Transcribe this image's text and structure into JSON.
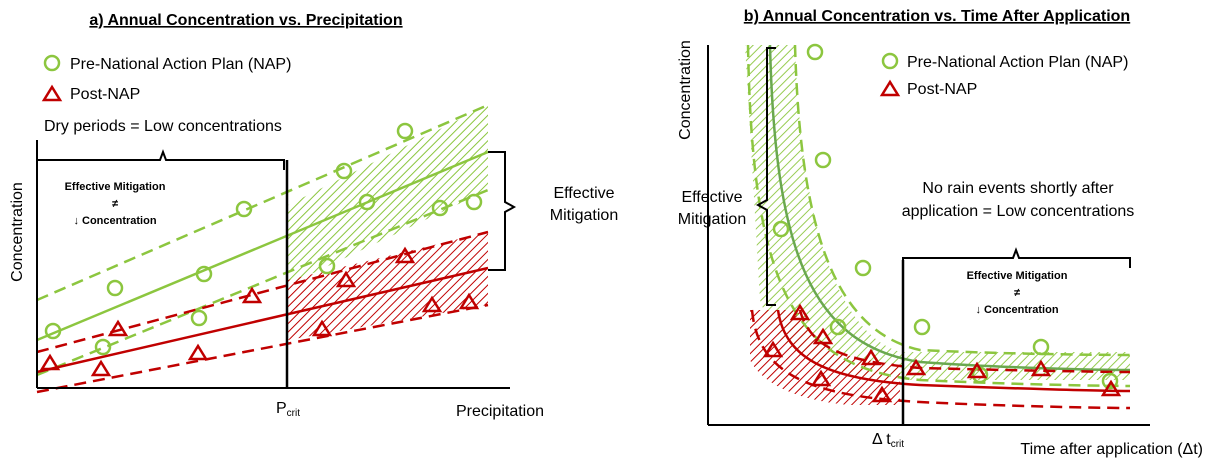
{
  "panel_a": {
    "title": "a) Annual Concentration vs. Precipitation",
    "legend_pre": "Pre-National Action Plan (NAP)",
    "legend_post": "Post-NAP",
    "dry_periods": "Dry periods = Low concentrations",
    "box_line1": "Effective Mitigation",
    "box_line2": "≠",
    "box_line3": "↓ Concentration",
    "right_line1": "Effective",
    "right_line2": "Mitigation",
    "ylabel": "Concentration",
    "xlabel": "Precipitation",
    "pcrit_main": "P",
    "pcrit_sub": "crit"
  },
  "panel_b": {
    "title": "b) Annual Concentration vs. Time After Application",
    "legend_pre": "Pre-National Action Plan (NAP)",
    "legend_post": "Post-NAP",
    "ylabel": "Concentration",
    "xlabel": "Time after application (Δt)",
    "left_line1": "Effective",
    "left_line2": "Mitigation",
    "norain_line1": "No rain events shortly after",
    "norain_line2": "application = Low concentrations",
    "box_line1": "Effective Mitigation",
    "box_line2": "≠",
    "box_line3": "↓ Concentration",
    "tcrit_main": "Δ t",
    "tcrit_sub": "crit"
  },
  "colors": {
    "green": "#8cc63f",
    "green_dark": "#6aa84f",
    "red": "#c00000"
  }
}
